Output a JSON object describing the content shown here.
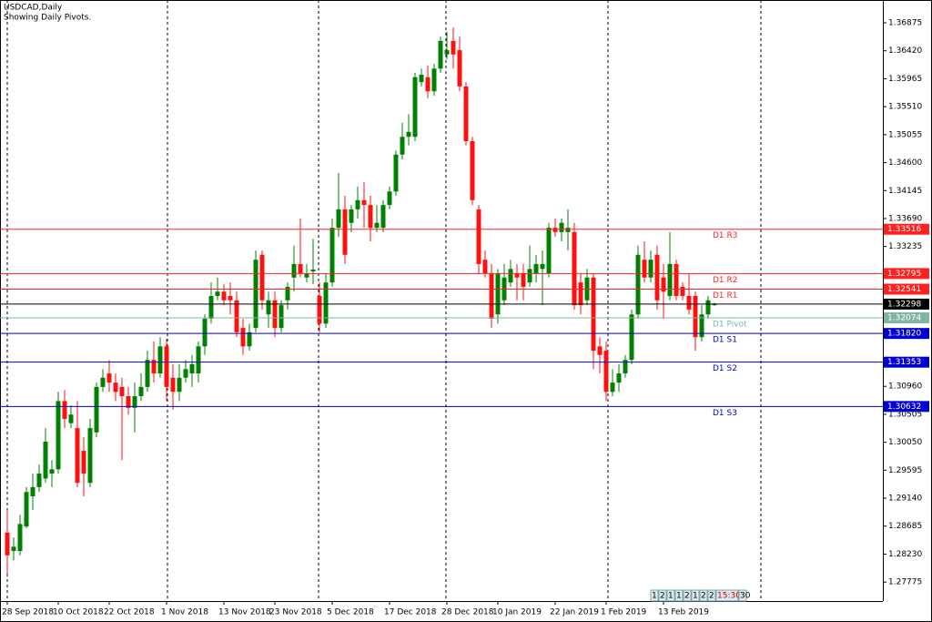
{
  "chart_data": {
    "type": "candlestick",
    "title": "USDCAD,Daily",
    "subtitle": "Showing Daily Pivots.",
    "categories": [
      "28 Sep 2018",
      null,
      null,
      null,
      null,
      null,
      null,
      null,
      "10 Oct 2018",
      null,
      null,
      null,
      null,
      null,
      null,
      null,
      "22 Oct 2018",
      null,
      null,
      null,
      null,
      null,
      null,
      null,
      null,
      "1 Nov 2018",
      null,
      null,
      null,
      null,
      null,
      null,
      null,
      null,
      "13 Nov 2018",
      null,
      null,
      null,
      null,
      null,
      null,
      null,
      "23 Nov 2018",
      null,
      null,
      null,
      null,
      null,
      null,
      null,
      null,
      "5 Dec 2018",
      null,
      null,
      null,
      null,
      null,
      null,
      null,
      null,
      "17 Dec 2018",
      null,
      null,
      null,
      null,
      null,
      null,
      null,
      null,
      "28 Dec 2018",
      null,
      null,
      null,
      null,
      null,
      null,
      null,
      "10 Jan 2019",
      null,
      null,
      null,
      null,
      null,
      null,
      null,
      null,
      "22 Jan 2019",
      null,
      null,
      null,
      null,
      null,
      null,
      null,
      "1 Feb 2019",
      null,
      null,
      null,
      null,
      null,
      null,
      null,
      null,
      "13 Feb 2019",
      null,
      null,
      null,
      null,
      null,
      null,
      null,
      null
    ],
    "open": [
      1.2858,
      1.2828,
      1.2828,
      1.2868,
      1.2917,
      1.2932,
      1.2946,
      1.2954,
      1.2961,
      1.3072,
      1.3036,
      1.3028,
      1.2991,
      1.2939,
      1.3021,
      1.3095,
      1.3117,
      1.3102,
      1.3095,
      1.308,
      1.3061,
      1.308,
      1.3095,
      1.3139,
      1.3117,
      1.3161,
      1.311,
      1.3087,
      1.311,
      1.3117,
      1.3117,
      1.3161,
      1.3206,
      1.3243,
      1.325,
      1.3243,
      1.3236,
      1.3191,
      1.3161,
      1.3191,
      1.331,
      1.3213,
      1.3236,
      1.3191,
      1.3236,
      1.3273,
      1.3295,
      1.3273,
      1.3283,
      1.3243,
      1.3198,
      1.3265,
      1.3354,
      1.3384,
      1.3362,
      1.3384,
      1.3399,
      1.3391,
      1.3354,
      1.3354,
      1.3391,
      1.3413,
      1.3473,
      1.3502,
      1.3502,
      1.3591,
      1.3599,
      1.3576,
      1.3613,
      1.3636,
      1.3658,
      1.3643,
      1.3584,
      1.3495,
      1.3384,
      1.3302,
      1.328,
      1.3213,
      1.3236,
      1.3265,
      1.328,
      1.328,
      1.3265,
      1.328,
      1.3287,
      1.328,
      1.3354,
      1.3347,
      1.3347,
      1.3347,
      1.3265,
      1.3236,
      1.3273,
      1.3161,
      1.3154,
      1.3087,
      1.3102,
      1.3117,
      1.3139,
      1.3213,
      1.3302,
      1.3273,
      1.331,
      1.3273,
      1.3243,
      1.3295,
      1.3258,
      1.3243,
      1.3243,
      1.3176,
      1.3213,
      1.3228
    ],
    "high": [
      1.2895,
      1.285,
      1.2887,
      1.2932,
      1.2954,
      1.2969,
      1.3028,
      1.2976,
      1.3087,
      1.309,
      1.3065,
      1.3072,
      1.3013,
      1.3043,
      1.3102,
      1.3124,
      1.3139,
      1.3117,
      1.311,
      1.3095,
      1.3102,
      1.3117,
      1.3154,
      1.3169,
      1.3176,
      1.3173,
      1.3132,
      1.3132,
      1.3139,
      1.3147,
      1.3169,
      1.3213,
      1.3265,
      1.3273,
      1.3262,
      1.3265,
      1.325,
      1.3206,
      1.3198,
      1.3317,
      1.3317,
      1.325,
      1.325,
      1.3236,
      1.3265,
      1.3325,
      1.3369,
      1.3295,
      1.3336,
      1.3265,
      1.328,
      1.3369,
      1.3443,
      1.3406,
      1.3391,
      1.3421,
      1.3428,
      1.3406,
      1.3391,
      1.3399,
      1.3421,
      1.348,
      1.3525,
      1.3539,
      1.3606,
      1.3613,
      1.3618,
      1.3621,
      1.3665,
      1.3673,
      1.368,
      1.3665,
      1.3591,
      1.3502,
      1.3391,
      1.3317,
      1.3295,
      1.3287,
      1.3295,
      1.3302,
      1.3295,
      1.3295,
      1.3325,
      1.331,
      1.3317,
      1.3362,
      1.3369,
      1.3369,
      1.3384,
      1.3362,
      1.328,
      1.3287,
      1.328,
      1.3176,
      1.3169,
      1.3124,
      1.3132,
      1.3147,
      1.3221,
      1.3325,
      1.3332,
      1.3317,
      1.3325,
      1.3295,
      1.3347,
      1.3302,
      1.3265,
      1.328,
      1.325,
      1.3228,
      1.3243,
      1.3232
    ],
    "low": [
      1.2791,
      1.2813,
      1.2821,
      1.2865,
      1.2895,
      1.2924,
      1.2939,
      1.2932,
      1.2954,
      1.3028,
      1.3028,
      1.2932,
      1.2917,
      1.2932,
      1.3013,
      1.3087,
      1.3087,
      1.3072,
      1.2976,
      1.305,
      1.3021,
      1.3072,
      1.3087,
      1.3102,
      1.311,
      1.3072,
      1.3058,
      1.3072,
      1.3102,
      1.3095,
      1.3102,
      1.3147,
      1.3198,
      1.3236,
      1.3228,
      1.3213,
      1.3176,
      1.3147,
      1.3154,
      1.3184,
      1.3221,
      1.3191,
      1.3176,
      1.3184,
      1.3221,
      1.325,
      1.3273,
      1.3265,
      1.3262,
      1.3184,
      1.3191,
      1.3258,
      1.3339,
      1.3295,
      1.3347,
      1.3369,
      1.3354,
      1.3332,
      1.3347,
      1.3347,
      1.3384,
      1.3406,
      1.3465,
      1.3488,
      1.3495,
      1.3584,
      1.3565,
      1.3569,
      1.3606,
      1.3628,
      1.3613,
      1.3576,
      1.3488,
      1.3391,
      1.328,
      1.3273,
      1.3191,
      1.3198,
      1.3228,
      1.3258,
      1.3236,
      1.3236,
      1.3258,
      1.3265,
      1.3228,
      1.3273,
      1.3339,
      1.3332,
      1.3317,
      1.3221,
      1.3213,
      1.3228,
      1.3124,
      1.3117,
      1.3072,
      1.308,
      1.3087,
      1.311,
      1.3132,
      1.3206,
      1.3265,
      1.3265,
      1.3221,
      1.3206,
      1.3236,
      1.3236,
      1.3236,
      1.3213,
      1.3154,
      1.3169,
      1.3206,
      1.3227
    ],
    "close": [
      1.2821,
      1.2835,
      1.2872,
      1.2924,
      1.2932,
      1.2954,
      1.3006,
      1.2961,
      1.3072,
      1.3043,
      1.305,
      1.2939,
      1.2954,
      1.3028,
      1.3095,
      1.311,
      1.3102,
      1.3087,
      1.308,
      1.3061,
      1.308,
      1.3095,
      1.3139,
      1.3117,
      1.3161,
      1.3095,
      1.3087,
      1.311,
      1.3124,
      1.3132,
      1.3161,
      1.3206,
      1.3243,
      1.325,
      1.3236,
      1.3236,
      1.3184,
      1.3161,
      1.3184,
      1.3302,
      1.3236,
      1.3236,
      1.3191,
      1.3228,
      1.3258,
      1.3295,
      1.328,
      1.328,
      1.3286,
      1.3198,
      1.3265,
      1.3354,
      1.3384,
      1.331,
      1.3384,
      1.3399,
      1.3391,
      1.3354,
      1.3362,
      1.3391,
      1.3413,
      1.3473,
      1.3502,
      1.351,
      1.3599,
      1.3603,
      1.3576,
      1.3613,
      1.3658,
      1.3643,
      1.3636,
      1.3584,
      1.3495,
      1.3399,
      1.3295,
      1.328,
      1.3206,
      1.328,
      1.3273,
      1.3287,
      1.3273,
      1.3258,
      1.3287,
      1.3295,
      1.3295,
      1.3354,
      1.3347,
      1.3362,
      1.3354,
      1.3228,
      1.3228,
      1.3273,
      1.3154,
      1.3147,
      1.3087,
      1.3102,
      1.3117,
      1.3139,
      1.3213,
      1.331,
      1.3273,
      1.3302,
      1.3236,
      1.325,
      1.3295,
      1.3243,
      1.3243,
      1.3221,
      1.3176,
      1.3213,
      1.3236,
      1.323
    ],
    "up_color": "#008000",
    "down_color": "#ff1010",
    "ylim": [
      1.27466,
      1.37246
    ],
    "yticks": [
      1.36875,
      {
        "value": 1.3642,
        "label": "1.36420"
      },
      1.35965,
      {
        "value": 1.3551,
        "label": "1.35510"
      },
      1.35055,
      {
        "value": 1.346,
        "label": "1.34600"
      },
      1.34145,
      {
        "value": 1.3369,
        "label": "1.33690"
      },
      1.33235,
      {
        "value": 1.3096,
        "label": "1.30960"
      },
      1.30505,
      {
        "value": 1.3005,
        "label": "1.30050"
      },
      1.29595,
      {
        "value": 1.2914,
        "label": "1.29140"
      },
      1.28685,
      {
        "value": 1.2823,
        "label": "1.28230"
      },
      1.27775
    ],
    "pivots": [
      {
        "name": "D1 R3",
        "value": 1.33516,
        "color": "#ff2020"
      },
      {
        "name": "D1 R2",
        "value": 1.32795,
        "color": "#ff2020"
      },
      {
        "name": "D1 R1",
        "value": 1.32541,
        "color": "#ff2020"
      },
      {
        "name": "D1 Pivot",
        "value": 1.32074,
        "color": "#7fb5a5"
      },
      {
        "name": "D1 S1",
        "value": 1.3182,
        "label": "1.31820",
        "color": "#0000d0"
      },
      {
        "name": "D1 S2",
        "value": 1.31353,
        "color": "#0000d0"
      },
      {
        "name": "D1 S3",
        "value": 1.30632,
        "color": "#0000d0"
      }
    ],
    "last_price": 1.32298,
    "timeframe_buttons": [
      "1",
      "2",
      "1",
      "1",
      "2",
      "1",
      "2",
      "2",
      "15:30",
      "30"
    ]
  }
}
